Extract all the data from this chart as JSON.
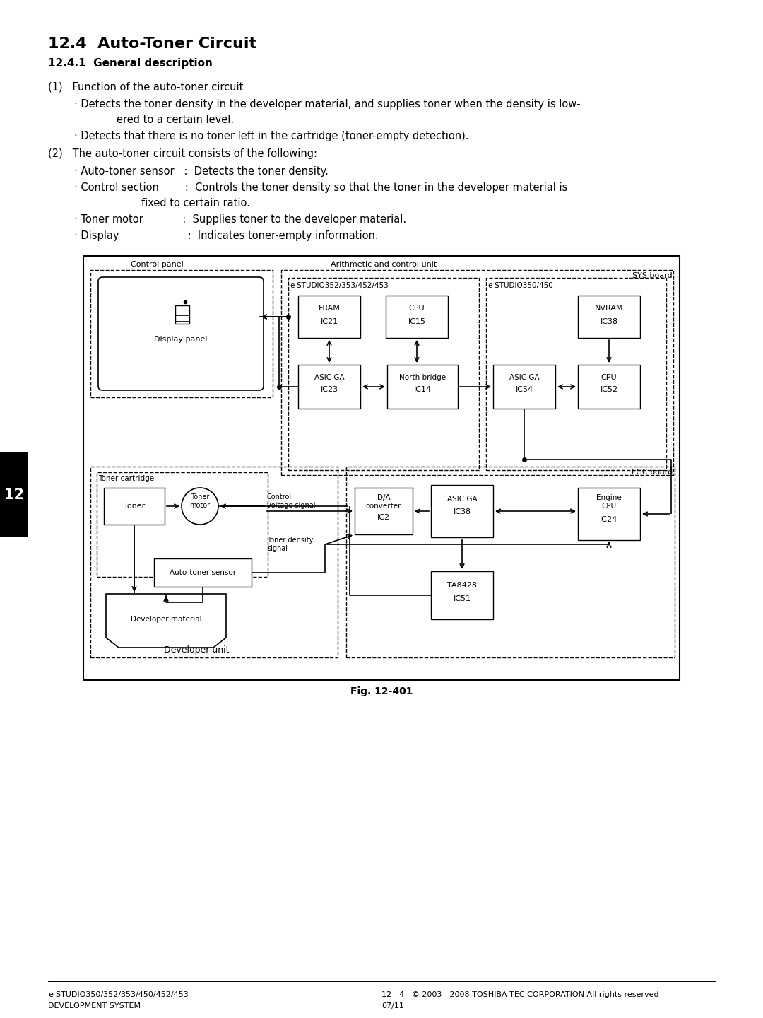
{
  "bg_color": "#ffffff",
  "title1": "12.4  Auto-Toner Circuit",
  "title2": "12.4.1  General description",
  "footer_left1": "e-STUDIO350/352/353/450/452/453",
  "footer_left2": "DEVELOPMENT SYSTEM",
  "footer_right1": "12 - 4   © 2003 - 2008 TOSHIBA TEC CORPORATION All rights reserved",
  "footer_right2": "07/11",
  "page_num": "12"
}
